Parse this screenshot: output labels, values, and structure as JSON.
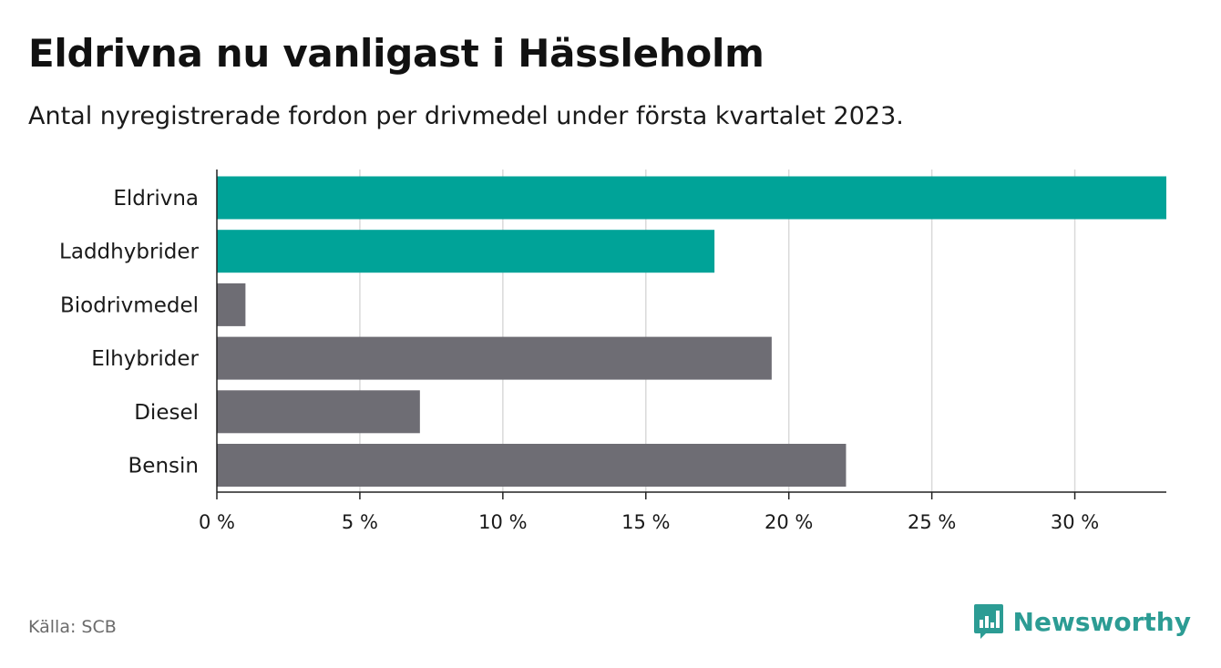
{
  "title": "Eldrivna nu vanligast i Hässleholm",
  "subtitle": "Antal nyregistrerade fordon per drivmedel under första kvartalet 2023.",
  "source": "Källa: SCB",
  "brand": {
    "name": "Newsworthy",
    "color": "#2c9c94"
  },
  "colors": {
    "highlight": "#00a398",
    "default": "#6e6d74",
    "grid": "#d9d9d9",
    "axis": "#222222"
  },
  "chart_data": {
    "type": "bar",
    "orientation": "horizontal",
    "categories": [
      "Eldrivna",
      "Laddhybrider",
      "Biodrivmedel",
      "Elhybrider",
      "Diesel",
      "Bensin"
    ],
    "values": [
      33.2,
      17.4,
      1.0,
      19.4,
      7.1,
      22.0
    ],
    "highlighted": [
      true,
      true,
      false,
      false,
      false,
      false
    ],
    "unit": "%",
    "xlim": [
      0,
      33.2
    ],
    "xticks": [
      0,
      5,
      10,
      15,
      20,
      25,
      30
    ],
    "xtick_labels": [
      "0 %",
      "5 %",
      "10 %",
      "15 %",
      "20 %",
      "25 %",
      "30 %"
    ],
    "grid": true,
    "legend": "none"
  }
}
